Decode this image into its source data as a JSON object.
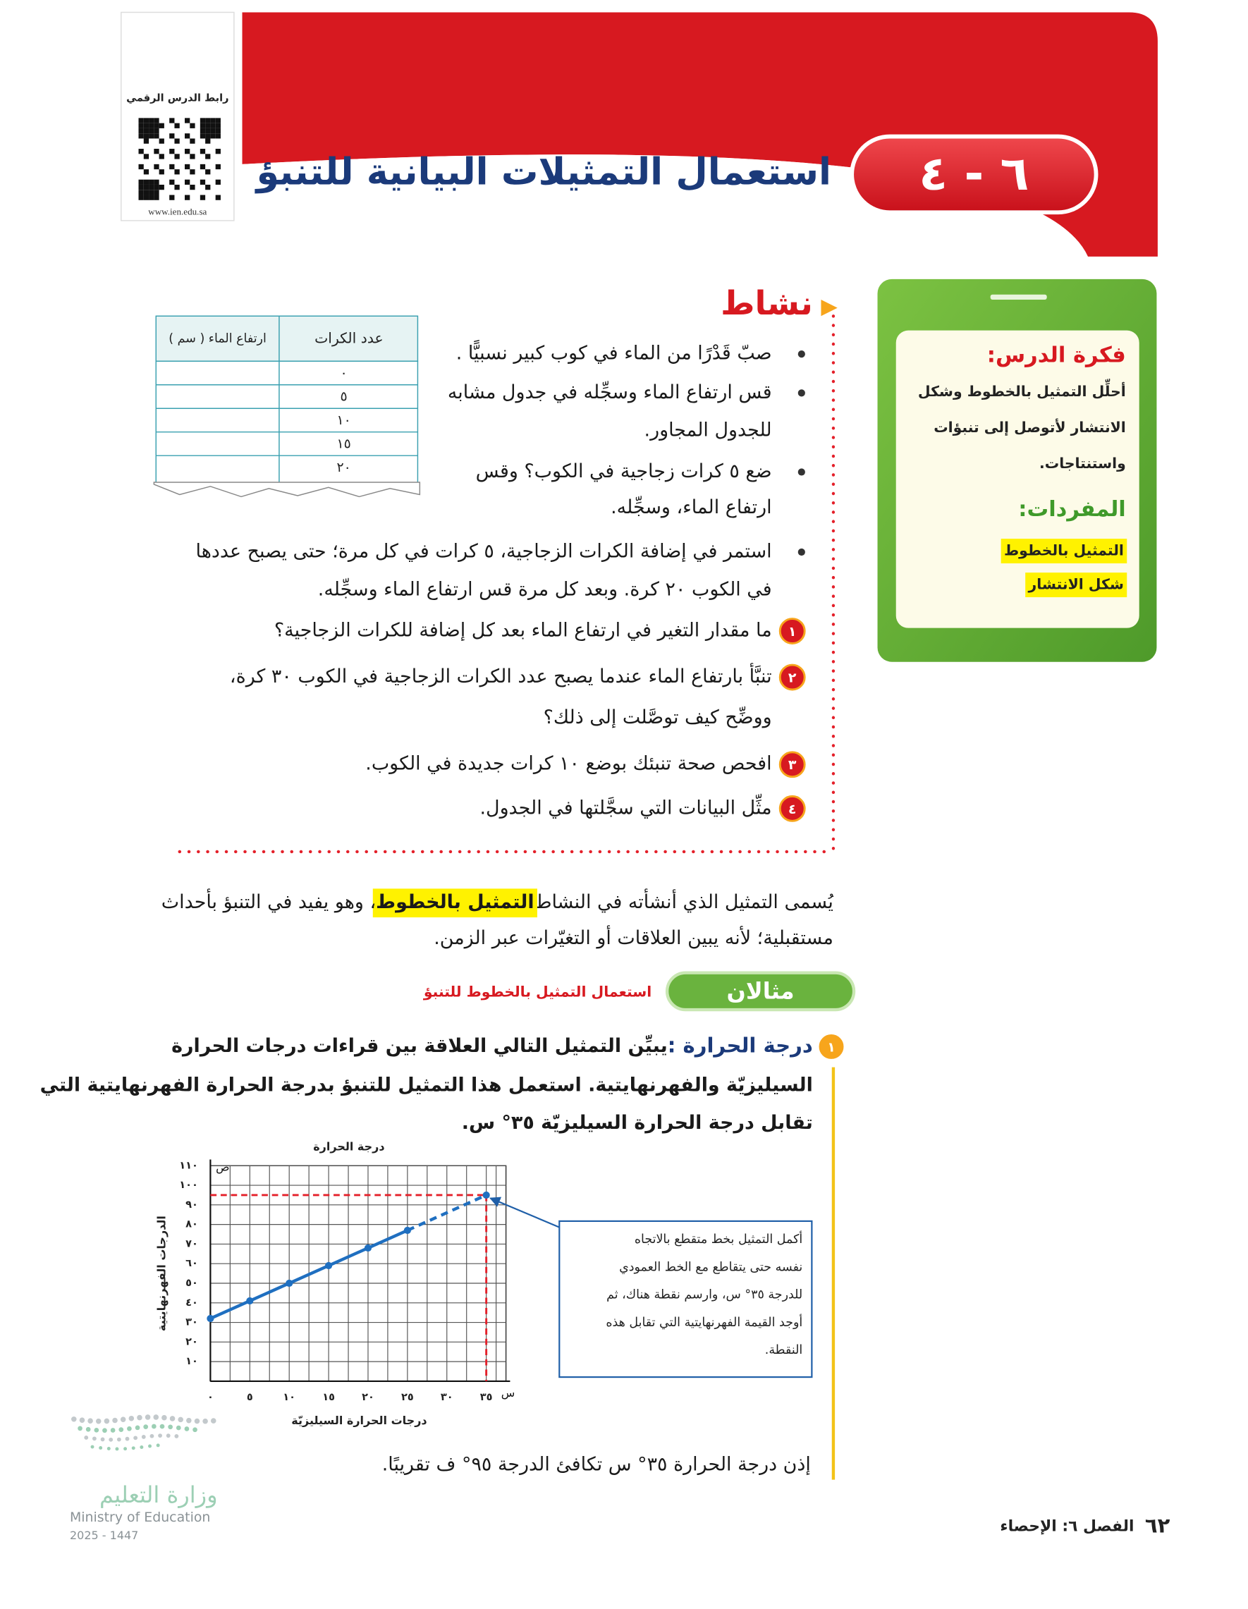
{
  "qr": {
    "caption": "رابط الدرس الرقمي",
    "url": "www.ien.edu.sa"
  },
  "header": {
    "lesson_number": "٦ - ٤",
    "title": "استعمال التمثيلات البيانية للتنبؤ"
  },
  "sidebar": {
    "idea_heading": "فكرة الدرس:",
    "idea_lines": [
      "أحلِّل التمثيل بالخطوط وشكل",
      "الانتشار لأتوصل إلى تنبؤات",
      "واستنتاجات."
    ],
    "vocabulary_heading": "المفردات:",
    "vocabulary": [
      "التمثيل بالخطوط",
      "شكل الانتشار"
    ]
  },
  "activity": {
    "heading": "نشاط",
    "table": {
      "headers": [
        "عدد الكرات",
        "ارتفاع الماء ( سم )"
      ],
      "balls": [
        "٠",
        "٥",
        "١٠",
        "١٥",
        "٢٠"
      ]
    },
    "bullets": [
      [
        "صبّ قَدْرًا من الماء في كوب كبير نسبيًّا ."
      ],
      [
        "قس ارتفاع الماء وسجِّله في جدول مشابه",
        "للجدول المجاور."
      ],
      [
        "ضع ٥ كرات زجاجية في الكوب؟ وقس",
        "ارتفاع الماء، وسجِّله."
      ],
      [
        "استمر في إضافة الكرات الزجاجية، ٥ كرات في كل مرة؛ حتى يصبح عددها",
        "في الكوب ٢٠ كرة. وبعد كل مرة قس ارتفاع الماء وسجِّله."
      ]
    ],
    "questions": [
      {
        "number": "١",
        "lines": [
          "ما مقدار التغير في ارتفاع الماء بعد كل إضافة للكرات الزجاجية؟"
        ]
      },
      {
        "number": "٢",
        "lines": [
          "تنبَّأ بارتفاع الماء عندما يصبح عدد الكرات الزجاجية في الكوب ٣٠ كرة،",
          "ووضِّح كيف توصَّلت إلى ذلك؟"
        ]
      },
      {
        "number": "٣",
        "lines": [
          "افحص صحة تنبئك بوضع ١٠ كرات جديدة في الكوب."
        ]
      },
      {
        "number": "٤",
        "lines": [
          "مثِّل البيانات التي سجَّلتها في الجدول."
        ]
      }
    ]
  },
  "paragraph": {
    "line1": [
      "يُسمى التمثيل الذي أنشأته في النشاط ",
      "التمثيل بالخطوط",
      "، وهو يفيد في التنبؤ بأحداث"
    ],
    "line2": "مستقبلية؛ لأنه يبين العلاقات أو التغيّرات عبر الزمن."
  },
  "example": {
    "label": "مثالان",
    "subtitle": "استعمال التمثيل بالخطوط للتنبؤ",
    "number": "١",
    "heading": "درجة الحرارة : ",
    "lines": [
      "يبيِّن التمثيل التالي العلاقة بين قراءات درجات الحرارة",
      "السيليزيّة والفهرنهايتية. استعمل هذا التمثيل للتنبؤ بدرجة الحرارة الفهرنهايتية التي",
      "تقابل درجة الحرارة السيليزيّة ٣٥° س."
    ],
    "conclusion": "إذن درجة الحرارة ٣٥° س تكافئ الدرجة ٩٥° ف تقريبًا."
  },
  "chart_data": {
    "type": "line",
    "title": "درجة الحرارة",
    "x_label": "درجات الحرارة السيليزيّة",
    "y_label": "الدرجات الفهرنهايتية",
    "x_axis_letter": "س",
    "y_axis_letter": "ص",
    "x": [
      0,
      5,
      10,
      15,
      20,
      25
    ],
    "series": [
      {
        "color": "#1f6fc0",
        "values": [
          32,
          41,
          50,
          59,
          68,
          77
        ]
      }
    ],
    "prediction": {
      "x": 35,
      "y": 95,
      "color": "#e4202a"
    },
    "xlim": [
      0,
      37.5
    ],
    "ylim": [
      0,
      110
    ],
    "xticks": [
      {
        "value": 0,
        "label": "٠"
      },
      {
        "value": 5,
        "label": "٥"
      },
      {
        "value": 10,
        "label": "١٠"
      },
      {
        "value": 15,
        "label": "١٥"
      },
      {
        "value": 20,
        "label": "٢٠"
      },
      {
        "value": 25,
        "label": "٢٥"
      },
      {
        "value": 30,
        "label": "٣٠"
      },
      {
        "value": 35,
        "label": "٣٥"
      }
    ],
    "yticks": [
      {
        "value": 10,
        "label": "١٠"
      },
      {
        "value": 20,
        "label": "٢٠"
      },
      {
        "value": 30,
        "label": "٣٠"
      },
      {
        "value": 40,
        "label": "٤٠"
      },
      {
        "value": 50,
        "label": "٥٠"
      },
      {
        "value": 60,
        "label": "٦٠"
      },
      {
        "value": 70,
        "label": "٧٠"
      },
      {
        "value": 80,
        "label": "٨٠"
      },
      {
        "value": 90,
        "label": "٩٠"
      },
      {
        "value": 100,
        "label": "١٠٠"
      },
      {
        "value": 110,
        "label": "١١٠"
      }
    ],
    "grid": true,
    "callout": [
      "أكمل التمثيل بخط متقطع بالاتجاه",
      "نفسه حتى يتقاطع مع الخط العمودي",
      "للدرجة ٣٥° س، وارسم نقطة هناك، ثم",
      "أوجد القيمة الفهرنهايتية التي تقابل هذه",
      "النقطة."
    ]
  },
  "footer": {
    "page": "٦٢",
    "chapter": "الفصل ٦: الإحصاء"
  },
  "ministry": {
    "arabic": "وزارة التعليم",
    "english": "Ministry of Education",
    "years": "2025 - 1447"
  }
}
